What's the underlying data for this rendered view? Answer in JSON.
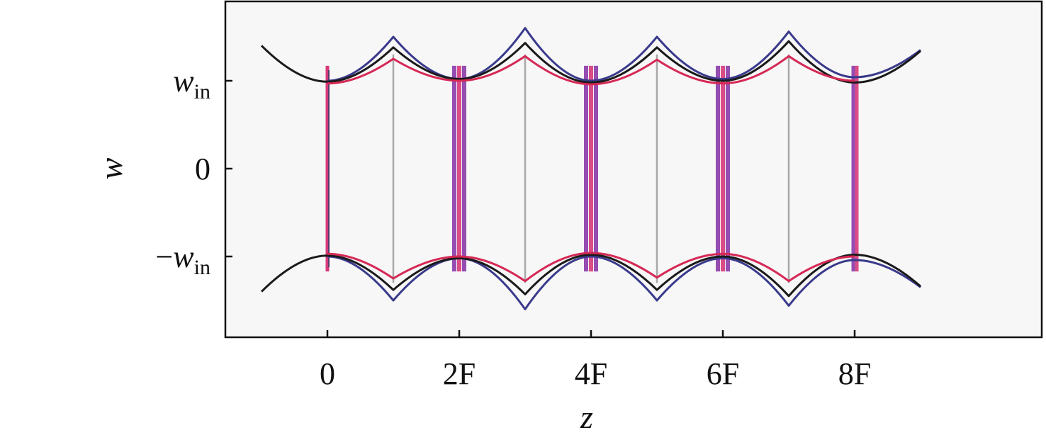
{
  "chart_data": {
    "type": "line",
    "xlabel": "z",
    "ylabel": "w",
    "x_ticks": [
      {
        "value": 0,
        "label": "0"
      },
      {
        "value": 2,
        "label": "2F"
      },
      {
        "value": 4,
        "label": "4F"
      },
      {
        "value": 6,
        "label": "6F"
      },
      {
        "value": 8,
        "label": "8F"
      }
    ],
    "y_ticks": [
      {
        "value": 1,
        "label_main": "w",
        "label_sub": "in",
        "label_prefix": ""
      },
      {
        "value": 0,
        "label_main": "0",
        "label_sub": "",
        "label_prefix": ""
      },
      {
        "value": -1,
        "label_main": "w",
        "label_sub": "in",
        "label_prefix": "−"
      }
    ],
    "xlim": [
      -1,
      9
    ],
    "ylim": [
      -1.9,
      1.9
    ],
    "grid": false,
    "legend": "none",
    "series": [
      {
        "color": "#3a3a8c",
        "points": [
          [
            0,
            1.0
          ],
          [
            1,
            1.5
          ],
          [
            2,
            1.02
          ],
          [
            3,
            1.6
          ],
          [
            4,
            1.0
          ],
          [
            5,
            1.5
          ],
          [
            6,
            1.02
          ],
          [
            7,
            1.56
          ],
          [
            8,
            1.04
          ],
          [
            9,
            1.35
          ]
        ]
      },
      {
        "color": "#1a1a1a",
        "points": [
          [
            -1,
            1.4
          ],
          [
            0,
            0.99
          ],
          [
            1,
            1.38
          ],
          [
            2,
            1.02
          ],
          [
            3,
            1.43
          ],
          [
            4,
            0.98
          ],
          [
            5,
            1.38
          ],
          [
            6,
            1.0
          ],
          [
            7,
            1.45
          ],
          [
            8,
            0.98
          ],
          [
            9,
            1.34
          ]
        ]
      },
      {
        "color": "#d62855",
        "points": [
          [
            0,
            0.97
          ],
          [
            1,
            1.25
          ],
          [
            2,
            1.0
          ],
          [
            3,
            1.28
          ],
          [
            4,
            0.96
          ],
          [
            5,
            1.24
          ],
          [
            6,
            0.97
          ],
          [
            7,
            1.28
          ],
          [
            8,
            1.0
          ]
        ]
      }
    ],
    "lens_lines": [
      {
        "z": 0,
        "style": "magenta-thin"
      },
      {
        "z": 1,
        "style": "gray"
      },
      {
        "z": 2,
        "style": "purple-thick"
      },
      {
        "z": 3,
        "style": "gray"
      },
      {
        "z": 4,
        "style": "purple-thick"
      },
      {
        "z": 5,
        "style": "gray"
      },
      {
        "z": 6,
        "style": "purple-thick"
      },
      {
        "z": 7,
        "style": "gray"
      },
      {
        "z": 8,
        "style": "purple-medium"
      }
    ],
    "colors": {
      "magenta": "#d63a7a",
      "purple": "#8a3aa8",
      "gray": "#a8a8a8"
    }
  }
}
